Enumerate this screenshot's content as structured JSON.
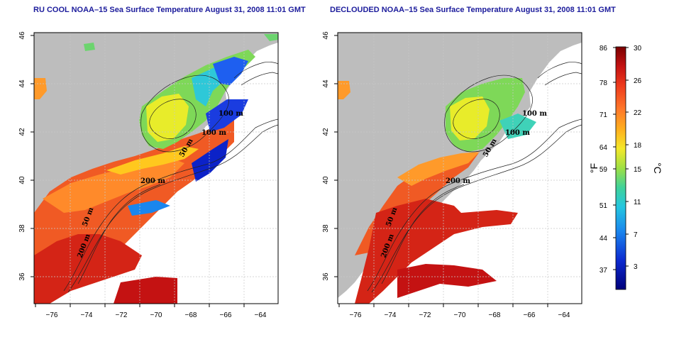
{
  "panels": [
    {
      "title": "RU COOL NOAA–15 Sea Surface Temperature August 31, 2008 11:01 GMT",
      "contours": [
        "100 m",
        "100 m",
        "50 m",
        "200 m",
        "50 m",
        "200 m"
      ]
    },
    {
      "title": "DECLOUDED NOAA–15 Sea Surface Temperature August 31, 2008 11:01 GMT",
      "contours": [
        "100 m",
        "100 m",
        "50 m",
        "200 m",
        "50 m",
        "200 m"
      ]
    }
  ],
  "axes": {
    "x_ticks": [
      "−76",
      "−74",
      "−72",
      "−70",
      "−68",
      "−66",
      "−64"
    ],
    "y_ticks": [
      "36",
      "38",
      "40",
      "42",
      "44",
      "46"
    ],
    "lon_range": [
      -77,
      -63
    ],
    "lat_range": [
      35,
      46
    ]
  },
  "colorbar": {
    "fahrenheit_ticks": [
      "86",
      "78",
      "71",
      "64",
      "59",
      "51",
      "44",
      "37"
    ],
    "celsius_ticks": [
      "30",
      "26",
      "22",
      "18",
      "15",
      "11",
      "7",
      "3"
    ],
    "left_unit": "°F",
    "right_unit": "°C",
    "colors": [
      "#7a0000",
      "#c41212",
      "#ee3a1c",
      "#ff6a2a",
      "#ff9a2a",
      "#ffc81e",
      "#f0f028",
      "#b6e43a",
      "#6cd46e",
      "#2ed0c0",
      "#1aa8e8",
      "#1e5ff0",
      "#0c22c8",
      "#00007a"
    ]
  },
  "colors": {
    "land": "#bdbdbd",
    "title": "#1c1c9c",
    "grid": "#c8c8c8"
  }
}
